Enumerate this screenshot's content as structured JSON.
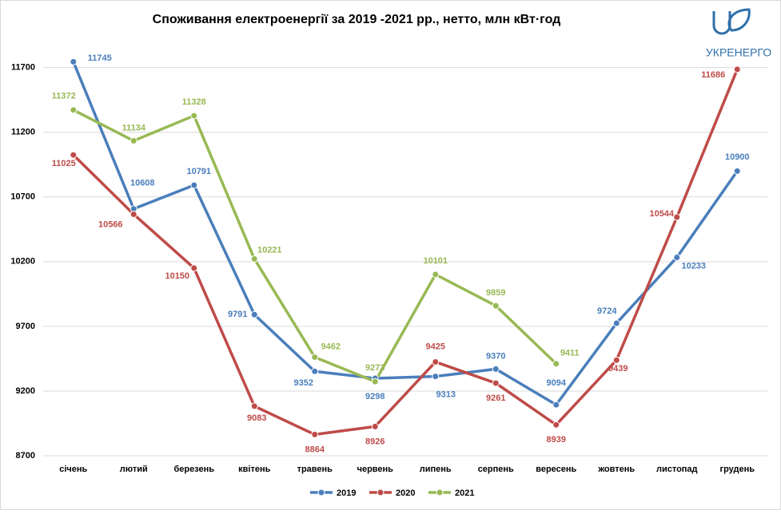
{
  "chart_data": {
    "type": "line",
    "title": "Споживання  електроенергії за 2019 -2021 рр., нетто, млн кВт·год",
    "logo": "УКРЕНЕРГО",
    "categories": [
      "січень",
      "лютий",
      "березень",
      "квітень",
      "травень",
      "червень",
      "липень",
      "серпень",
      "вересень",
      "жовтень",
      "листопад",
      "грудень"
    ],
    "series": [
      {
        "name": "2019",
        "color": "#4a7ebb",
        "values": [
          11745,
          10608,
          10791,
          9791,
          9352,
          9298,
          9313,
          9370,
          9094,
          9724,
          10233,
          10900
        ]
      },
      {
        "name": "2020",
        "color": "#be4b48",
        "values": [
          11025,
          10566,
          10150,
          9083,
          8864,
          8926,
          9425,
          9261,
          8939,
          9439,
          10544,
          11686
        ]
      },
      {
        "name": "2021",
        "color": "#98b954",
        "values": [
          11372,
          11134,
          11328,
          10221,
          9462,
          9273,
          10101,
          9859,
          9411,
          null,
          null,
          null
        ]
      }
    ],
    "ylim": [
      8700,
      12000
    ],
    "yticks": [
      8700,
      9200,
      9700,
      10200,
      10700,
      11200,
      11700
    ],
    "grid": true,
    "legend": "bottom"
  }
}
